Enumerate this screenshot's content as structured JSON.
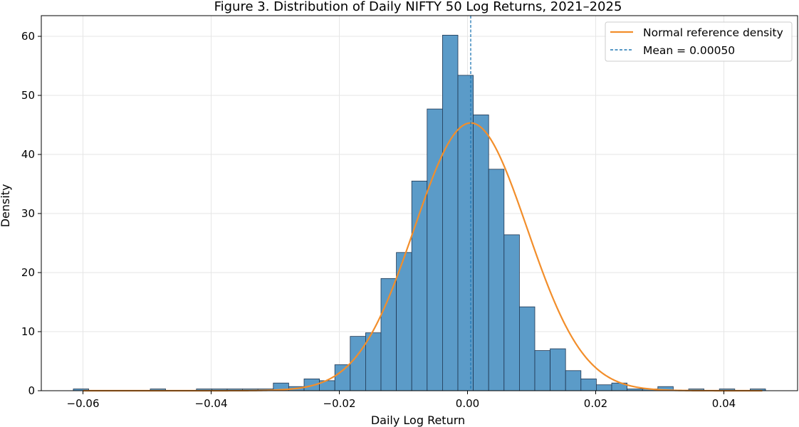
{
  "chart_data": {
    "type": "bar",
    "title": "Figure 3. Distribution of Daily NIFTY 50 Log Returns, 2021–2025",
    "xlabel": "Daily Log Return",
    "ylabel": "Density",
    "xlim": [
      -0.0665,
      0.0515
    ],
    "ylim": [
      0,
      63.5
    ],
    "x_ticks": [
      -0.06,
      -0.04,
      -0.02,
      0.0,
      0.02,
      0.04
    ],
    "x_tick_labels": [
      "−0.06",
      "−0.04",
      "−0.02",
      "0.00",
      "0.02",
      "0.04"
    ],
    "y_ticks": [
      0,
      10,
      20,
      30,
      40,
      50,
      60
    ],
    "y_tick_labels": [
      "0",
      "10",
      "20",
      "30",
      "40",
      "50",
      "60"
    ],
    "grid": true,
    "legend_position": "top-right",
    "bin_start": -0.0615,
    "bin_width": 0.0024,
    "histogram": {
      "values": [
        0.3,
        0,
        0,
        0,
        0,
        0.3,
        0,
        0,
        0.3,
        0.3,
        0.3,
        0.3,
        0.3,
        1.3,
        0.7,
        2.0,
        1.7,
        4.4,
        9.2,
        9.8,
        19.0,
        23.4,
        35.5,
        47.7,
        60.2,
        53.4,
        46.7,
        37.5,
        26.4,
        14.2,
        6.8,
        7.1,
        3.4,
        2.0,
        1.0,
        1.3,
        0.3,
        0.3,
        0.7,
        0,
        0.3,
        0,
        0.3,
        0,
        0.3
      ],
      "color": "#5b9bc8",
      "edge_color": "#1f3550"
    },
    "series": [
      {
        "name": "Normal reference density",
        "kind": "line",
        "color": "#f28e2b",
        "mean": 0.0005,
        "std": 0.0088
      },
      {
        "name": "Mean = 0.00050",
        "kind": "vline",
        "color": "#1f77b4",
        "value": 0.0005
      }
    ]
  }
}
